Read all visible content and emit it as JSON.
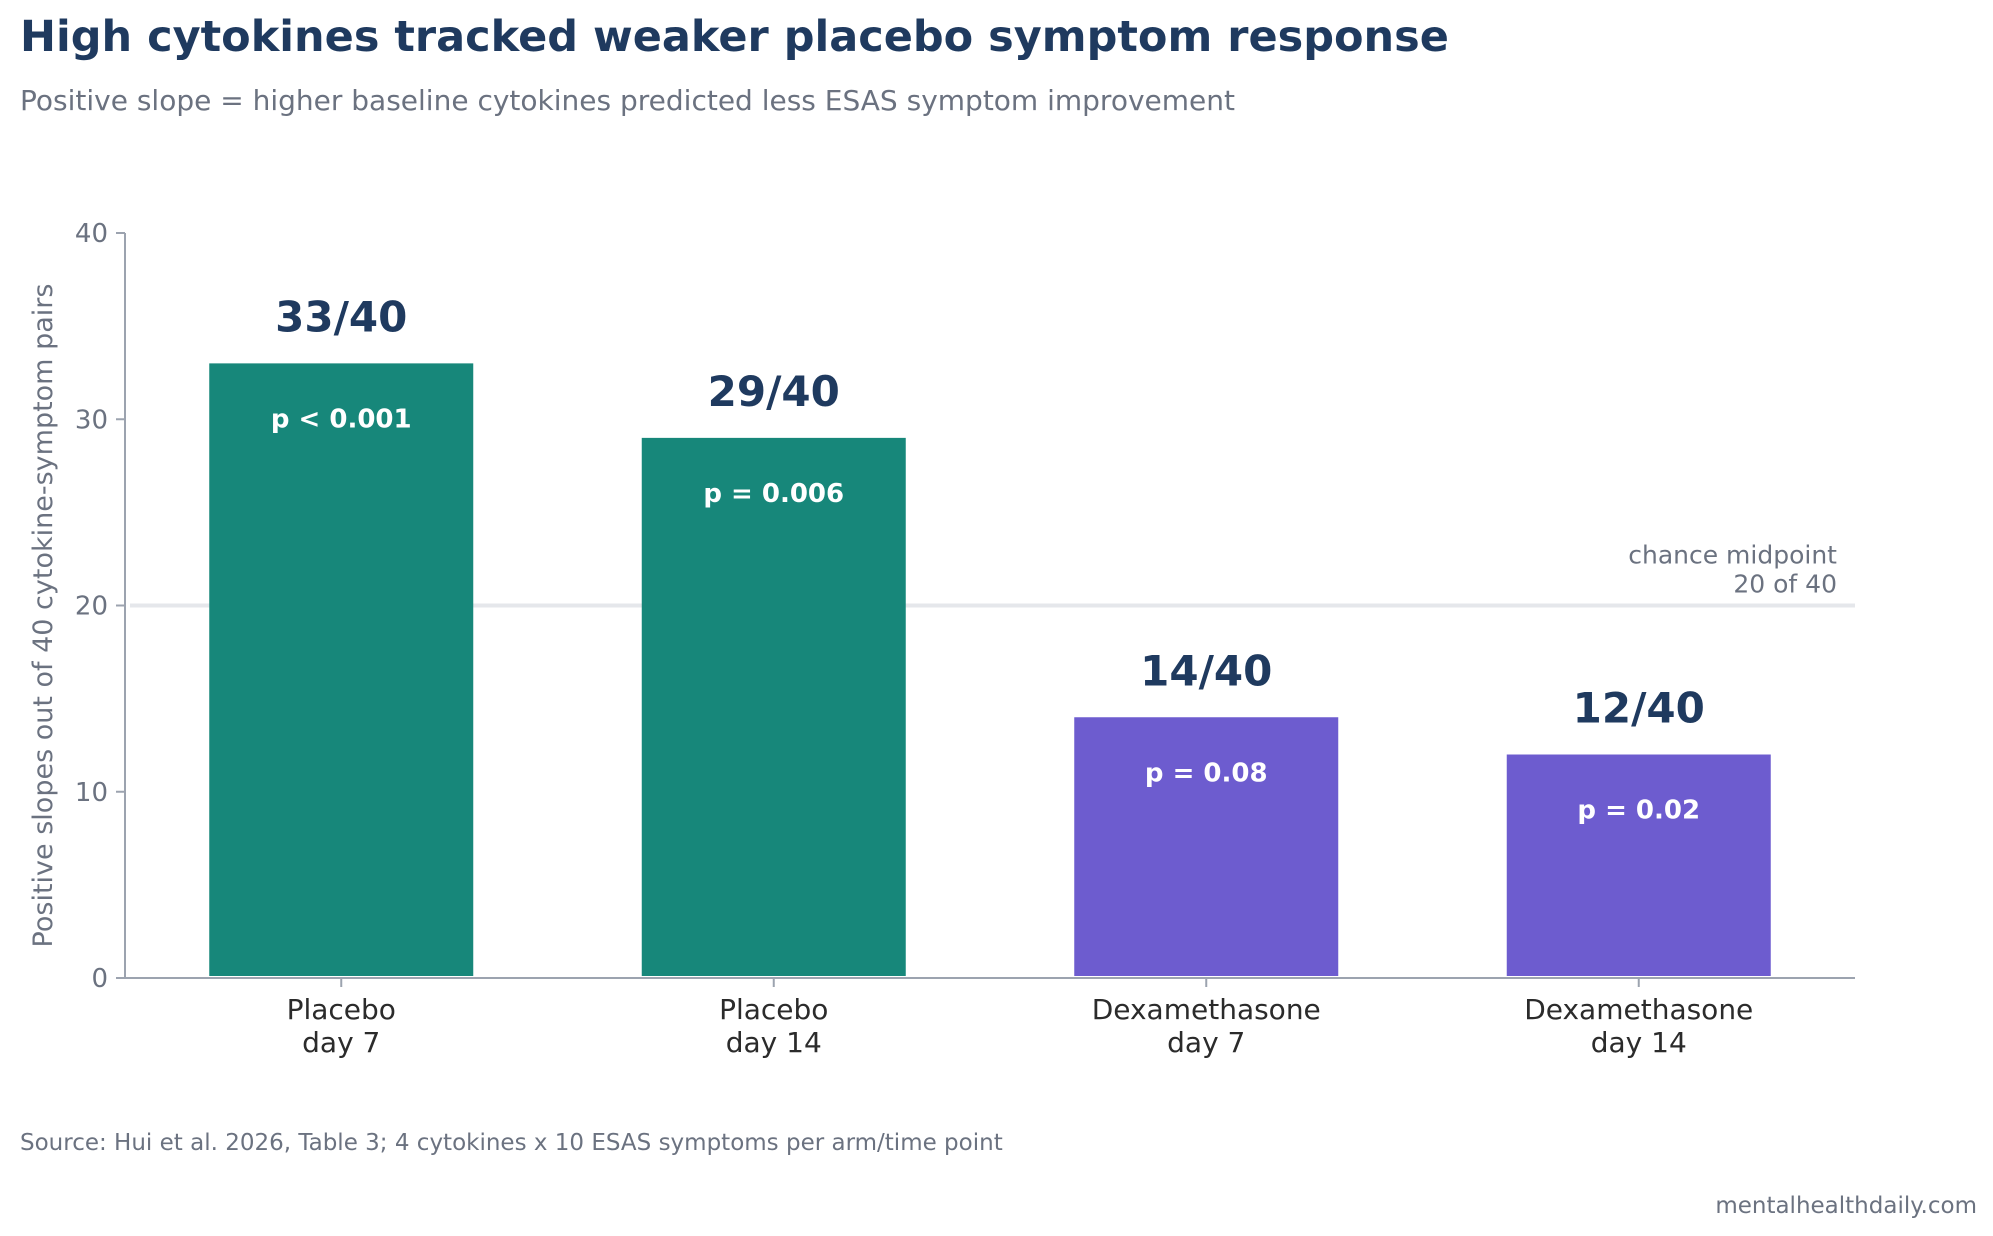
{
  "title": "High cytokines tracked weaker placebo symptom response",
  "subtitle": "Positive slope = higher baseline cytokines predicted less ESAS symptom improvement",
  "source": "Source: Hui et al. 2026, Table 3; 4 cytokines x 10 ESAS symptoms per arm/time point",
  "credit": "mentalhealthdaily.com",
  "colors": {
    "placebo": "#17877a",
    "dexamethasone": "#6d5ccf",
    "title": "#1f3a5f",
    "muted": "#6b7280",
    "axis": "#9ca3af",
    "reference_line": "#e5e7eb"
  },
  "chart_data": {
    "type": "bar",
    "categories": [
      [
        "Placebo",
        "day 7"
      ],
      [
        "Placebo",
        "day 14"
      ],
      [
        "Dexamethasone",
        "day 7"
      ],
      [
        "Dexamethasone",
        "day 14"
      ]
    ],
    "values": [
      33,
      29,
      14,
      12
    ],
    "value_labels": [
      "33/40",
      "29/40",
      "14/40",
      "12/40"
    ],
    "p_labels": [
      "p < 0.001",
      "p = 0.006",
      "p = 0.08",
      "p = 0.02"
    ],
    "arms": [
      "placebo",
      "placebo",
      "dexamethasone",
      "dexamethasone"
    ],
    "ylabel": "Positive slopes out of 40 cytokine-symptom pairs",
    "ylim": [
      0,
      40
    ],
    "yticks": [
      0,
      10,
      20,
      30,
      40
    ],
    "reference_line": {
      "value": 20,
      "label_lines": [
        "chance midpoint",
        "20 of 40"
      ]
    },
    "grid": false,
    "legend": "none"
  }
}
